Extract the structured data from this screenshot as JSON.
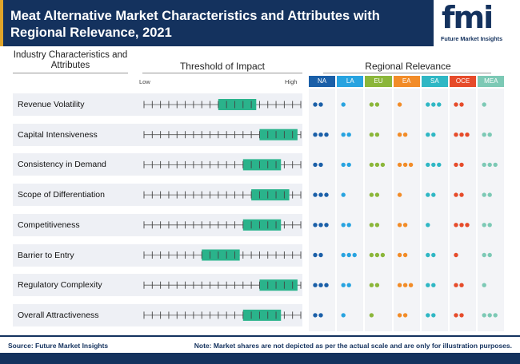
{
  "header": {
    "title": "Meat Alternative Market Characteristics and Attributes with Regional Relevance, 2021"
  },
  "logo": {
    "mark": "fmi",
    "subtitle": "Future Market Insights"
  },
  "columns": {
    "left_heading": "Industry Characteristics and Attributes",
    "threshold_heading": "Threshold of Impact",
    "regional_heading": "Regional Relevance",
    "low_label": "Low",
    "high_label": "High"
  },
  "chart_data": {
    "type": "table",
    "tick_count": 20,
    "regions": [
      {
        "name": "NA",
        "color": "#1a5fa8"
      },
      {
        "name": "LA",
        "color": "#27a3e0"
      },
      {
        "name": "EU",
        "color": "#8bb63a"
      },
      {
        "name": "EA",
        "color": "#f28c28"
      },
      {
        "name": "SA",
        "color": "#2fb7c4"
      },
      {
        "name": "OCE",
        "color": "#e64b2a"
      },
      {
        "name": "MEA",
        "color": "#7cc9b5"
      }
    ],
    "threshold_bar_color": "#2ab38b",
    "rows": [
      {
        "label": "Revenue Volatility",
        "impact_start": 10,
        "impact_end": 14,
        "regional_dots": [
          2,
          1,
          2,
          1,
          3,
          2,
          1
        ]
      },
      {
        "label": "Capital Intensiveness",
        "impact_start": 15,
        "impact_end": 19,
        "regional_dots": [
          3,
          2,
          2,
          2,
          2,
          3,
          2
        ]
      },
      {
        "label": "Consistency in Demand",
        "impact_start": 13,
        "impact_end": 17,
        "regional_dots": [
          2,
          2,
          3,
          3,
          3,
          2,
          3
        ]
      },
      {
        "label": "Scope of Differentiation",
        "impact_start": 14,
        "impact_end": 18,
        "regional_dots": [
          3,
          1,
          2,
          1,
          2,
          2,
          2
        ]
      },
      {
        "label": "Competitiveness",
        "impact_start": 13,
        "impact_end": 17,
        "regional_dots": [
          3,
          2,
          2,
          2,
          1,
          3,
          2
        ]
      },
      {
        "label": "Barrier to Entry",
        "impact_start": 8,
        "impact_end": 12,
        "regional_dots": [
          2,
          3,
          3,
          2,
          2,
          1,
          2
        ]
      },
      {
        "label": "Regulatory Complexity",
        "impact_start": 15,
        "impact_end": 19,
        "regional_dots": [
          3,
          2,
          2,
          3,
          2,
          2,
          1
        ]
      },
      {
        "label": "Overall Attractiveness",
        "impact_start": 13,
        "impact_end": 17,
        "regional_dots": [
          2,
          1,
          1,
          2,
          2,
          2,
          3
        ]
      }
    ]
  },
  "footer": {
    "source": "Source: Future Market Insights",
    "note": "Note: Market shares are not depicted as per the actual scale and are only for illustration purposes."
  }
}
